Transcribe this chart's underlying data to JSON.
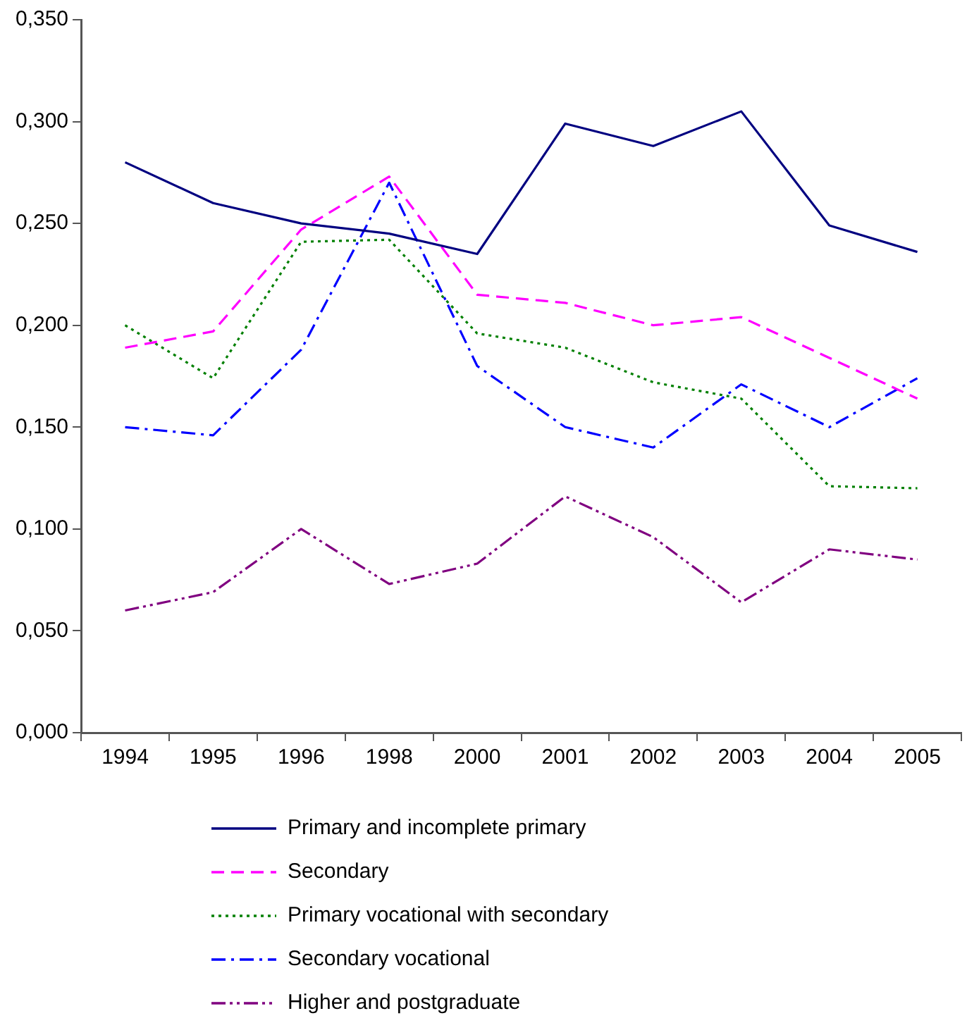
{
  "chart_data": {
    "type": "line",
    "categories": [
      "1994",
      "1995",
      "1996",
      "1998",
      "2000",
      "2001",
      "2002",
      "2003",
      "2004",
      "2005"
    ],
    "series": [
      {
        "name": "Primary and incomplete primary",
        "color": "#000080",
        "line_style": "solid",
        "values": [
          0.28,
          0.26,
          0.25,
          0.245,
          0.235,
          0.299,
          0.288,
          0.305,
          0.249,
          0.236
        ]
      },
      {
        "name": "Secondary",
        "color": "#ff00ff",
        "line_style": "dashed",
        "values": [
          0.189,
          0.197,
          0.247,
          0.273,
          0.215,
          0.211,
          0.2,
          0.204,
          0.184,
          0.164
        ]
      },
      {
        "name": "Primary vocational with secondary",
        "color": "#008000",
        "line_style": "dotted",
        "values": [
          0.2,
          0.174,
          0.241,
          0.242,
          0.196,
          0.189,
          0.172,
          0.164,
          0.121,
          0.12
        ]
      },
      {
        "name": "Secondary vocational",
        "color": "#0000ff",
        "line_style": "dashdot",
        "values": [
          0.15,
          0.146,
          0.188,
          0.27,
          0.18,
          0.15,
          0.14,
          0.171,
          0.15,
          0.174
        ]
      },
      {
        "name": "Higher and postgraduate",
        "color": "#800080",
        "line_style": "dashdotdot",
        "values": [
          0.06,
          0.069,
          0.1,
          0.073,
          0.083,
          0.116,
          0.096,
          0.064,
          0.09,
          0.085
        ]
      }
    ],
    "ylim": [
      0,
      0.35
    ],
    "yticks": [
      {
        "value": 0,
        "label": "0,000"
      },
      {
        "value": 0.05,
        "label": "0,050"
      },
      {
        "value": 0.1,
        "label": "0,100"
      },
      {
        "value": 0.15,
        "label": "0,150"
      },
      {
        "value": 0.2,
        "label": "0,200"
      },
      {
        "value": 0.25,
        "label": "0,250"
      },
      {
        "value": 0.3,
        "label": "0,300"
      },
      {
        "value": 0.35,
        "label": "0,350"
      }
    ],
    "grid": false,
    "legend": "bottom",
    "marker": "none"
  }
}
